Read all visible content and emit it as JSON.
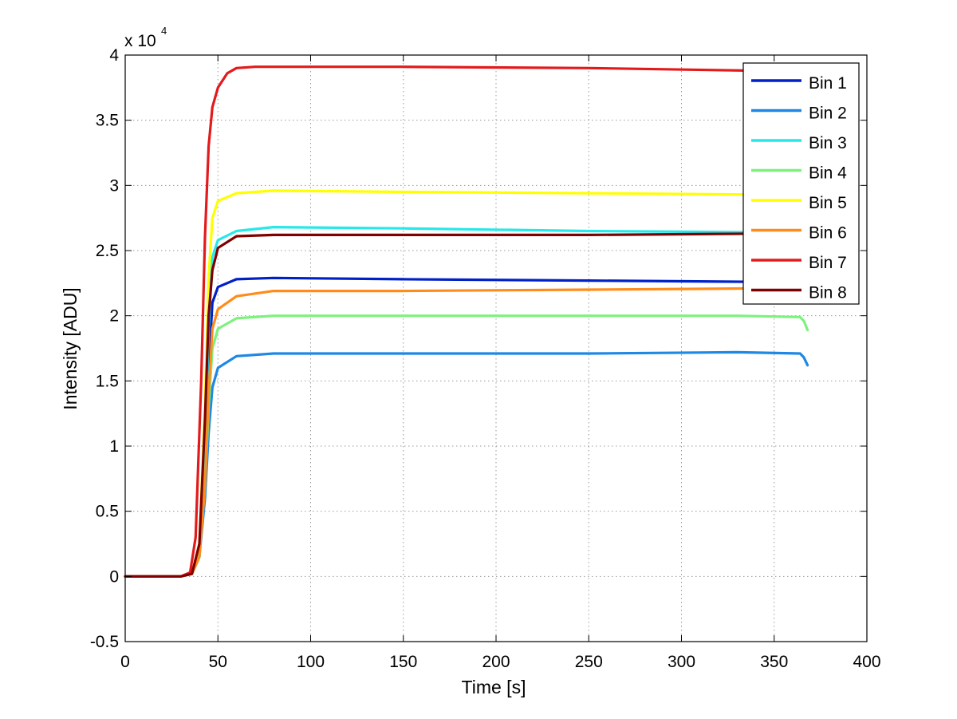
{
  "chart_data": {
    "type": "line",
    "title": "",
    "xlabel": "Time [s]",
    "ylabel": "Intensity [ADU]",
    "xlim": [
      0,
      400
    ],
    "ylim": [
      -0.5,
      4
    ],
    "y_exponent_label": "x 10",
    "y_exponent_power": "4",
    "x_ticks": [
      0,
      50,
      100,
      150,
      200,
      250,
      300,
      350,
      400
    ],
    "x_tick_labels": [
      "0",
      "50",
      "100",
      "150",
      "200",
      "250",
      "300",
      "350",
      "400"
    ],
    "y_ticks": [
      -0.5,
      0,
      0.5,
      1,
      1.5,
      2,
      2.5,
      3,
      3.5,
      4
    ],
    "y_tick_labels": [
      "-0.5",
      "0",
      "0.5",
      "1",
      "1.5",
      "2",
      "2.5",
      "3",
      "3.5",
      "4"
    ],
    "grid": true,
    "legend_position": "top-right",
    "series": [
      {
        "name": "Bin 1",
        "color": "#0020c8",
        "x": [
          0,
          30,
          36,
          40,
          43,
          45,
          47,
          50,
          60,
          80,
          150,
          250,
          340
        ],
        "y": [
          0,
          0,
          0.02,
          0.2,
          0.9,
          1.6,
          2.1,
          2.22,
          2.28,
          2.29,
          2.28,
          2.27,
          2.26
        ]
      },
      {
        "name": "Bin 2",
        "color": "#1e88e5",
        "x": [
          0,
          30,
          36,
          40,
          43,
          45,
          47,
          50,
          60,
          80,
          150,
          250,
          330,
          364,
          366,
          368
        ],
        "y": [
          0,
          0,
          0.02,
          0.15,
          0.6,
          1.1,
          1.45,
          1.6,
          1.69,
          1.71,
          1.71,
          1.71,
          1.72,
          1.71,
          1.68,
          1.62
        ]
      },
      {
        "name": "Bin 3",
        "color": "#26e8e8",
        "x": [
          0,
          30,
          36,
          40,
          43,
          45,
          47,
          50,
          60,
          80,
          150,
          250,
          340
        ],
        "y": [
          0,
          0,
          0.02,
          0.2,
          1.0,
          1.9,
          2.45,
          2.58,
          2.65,
          2.68,
          2.67,
          2.65,
          2.64
        ]
      },
      {
        "name": "Bin 4",
        "color": "#7cf27c",
        "x": [
          0,
          30,
          36,
          40,
          43,
          45,
          47,
          50,
          60,
          80,
          150,
          250,
          330,
          364,
          366,
          368
        ],
        "y": [
          0,
          0,
          0.02,
          0.15,
          0.7,
          1.3,
          1.75,
          1.9,
          1.98,
          2.0,
          2.0,
          2.0,
          2.0,
          1.99,
          1.96,
          1.89
        ]
      },
      {
        "name": "Bin 5",
        "color": "#ffff00",
        "x": [
          0,
          30,
          36,
          40,
          43,
          45,
          47,
          50,
          60,
          80,
          150,
          250,
          340
        ],
        "y": [
          0,
          0,
          0.02,
          0.25,
          1.3,
          2.3,
          2.75,
          2.88,
          2.94,
          2.96,
          2.95,
          2.94,
          2.93
        ]
      },
      {
        "name": "Bin 6",
        "color": "#ff8c1a",
        "x": [
          0,
          30,
          36,
          40,
          43,
          45,
          47,
          50,
          60,
          80,
          150,
          250,
          340
        ],
        "y": [
          0,
          0,
          0.02,
          0.15,
          0.7,
          1.4,
          1.9,
          2.05,
          2.15,
          2.19,
          2.19,
          2.2,
          2.21
        ]
      },
      {
        "name": "Bin 7",
        "color": "#e31a1c",
        "x": [
          0,
          30,
          35,
          38,
          41,
          43,
          45,
          47,
          50,
          55,
          60,
          70,
          90,
          150,
          250,
          340
        ],
        "y": [
          0,
          0,
          0.03,
          0.3,
          1.5,
          2.6,
          3.3,
          3.6,
          3.75,
          3.86,
          3.9,
          3.91,
          3.91,
          3.91,
          3.9,
          3.88
        ]
      },
      {
        "name": "Bin 8",
        "color": "#7f0000",
        "x": [
          0,
          30,
          36,
          40,
          43,
          45,
          47,
          50,
          60,
          80,
          150,
          250,
          340
        ],
        "y": [
          0,
          0,
          0.02,
          0.25,
          1.2,
          2.0,
          2.35,
          2.52,
          2.61,
          2.62,
          2.62,
          2.62,
          2.63
        ]
      }
    ]
  }
}
